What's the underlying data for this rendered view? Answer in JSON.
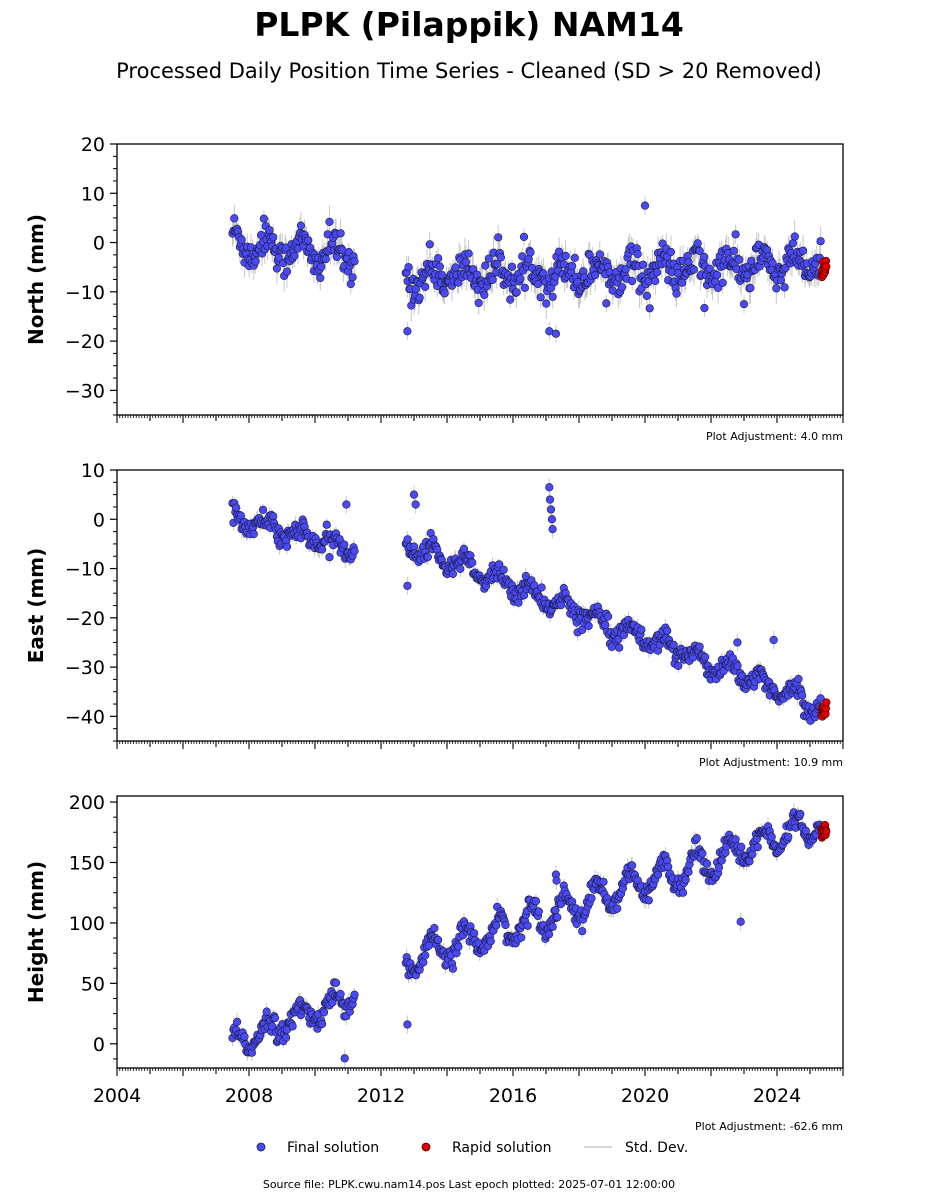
{
  "title": "PLPK (Pilappik) NAM14",
  "subtitle": "Processed Daily Position Time Series - Cleaned (SD > 20 Removed)",
  "source_text": "Source file: PLPK.cwu.nam14.pos  Last epoch plotted: 2025-07-01 12:00:00",
  "legend": {
    "final": "Final solution",
    "rapid": "Rapid solution",
    "std": "Std. Dev."
  },
  "colors": {
    "final": "#4a4af4",
    "rapid": "#e00000",
    "std": "#c8c8c8",
    "edge": "#1a1a3a"
  },
  "chart_data": [
    {
      "type": "scatter",
      "component": "north",
      "ylabel": "North (mm)",
      "ylim": [
        -35,
        20
      ],
      "yticks": [
        20,
        10,
        0,
        -10,
        -20,
        -30
      ],
      "xlim": [
        2004,
        2026
      ],
      "adjustment": "Plot Adjustment: 4.0 mm",
      "series": [
        {
          "segments": [
            {
              "x0": 2007.5,
              "x1": 2011.2,
              "y0": 0.0,
              "y1": -3.0,
              "amp": 2.5,
              "noise": 2.2
            },
            {
              "x0": 2012.75,
              "x1": 2025.35,
              "y0": -7.0,
              "y1": -4.5,
              "amp": 2.0,
              "noise": 2.3
            }
          ]
        }
      ],
      "outliers": [
        {
          "x": 2012.8,
          "y": -18
        },
        {
          "x": 2017.1,
          "y": -18
        },
        {
          "x": 2017.3,
          "y": -18.5
        },
        {
          "x": 2020.0,
          "y": 7.5
        },
        {
          "x": 2021.8,
          "y": -13.3
        },
        {
          "x": 2023.0,
          "y": -12.5
        }
      ],
      "rapid": {
        "x0": 2025.35,
        "x1": 2025.5,
        "y": -5
      }
    },
    {
      "type": "scatter",
      "component": "east",
      "ylabel": "East (mm)",
      "ylim": [
        -45,
        10
      ],
      "yticks": [
        10,
        0,
        -10,
        -20,
        -30,
        -40
      ],
      "xlim": [
        2004,
        2026
      ],
      "adjustment": "Plot Adjustment: 10.9 mm",
      "series": [
        {
          "segments": [
            {
              "x0": 2007.5,
              "x1": 2011.2,
              "y0": 0.5,
              "y1": -6.0,
              "amp": 1.5,
              "noise": 1.3
            },
            {
              "x0": 2012.75,
              "x1": 2025.35,
              "y0": -5.0,
              "y1": -38.0,
              "amp": 1.8,
              "noise": 1.2
            }
          ]
        }
      ],
      "outliers": [
        {
          "x": 2012.8,
          "y": -13.5
        },
        {
          "x": 2013.0,
          "y": 5.0
        },
        {
          "x": 2013.05,
          "y": 3.0
        },
        {
          "x": 2017.1,
          "y": 6.5
        },
        {
          "x": 2017.12,
          "y": 4.0
        },
        {
          "x": 2017.15,
          "y": 2.0
        },
        {
          "x": 2017.18,
          "y": 0.0
        },
        {
          "x": 2017.2,
          "y": -2.0
        },
        {
          "x": 2010.95,
          "y": 3.0
        },
        {
          "x": 2022.8,
          "y": -25.0
        },
        {
          "x": 2023.9,
          "y": -24.5
        }
      ],
      "rapid": {
        "x0": 2025.35,
        "x1": 2025.5,
        "y": -39
      }
    },
    {
      "type": "scatter",
      "component": "height",
      "ylabel": "Height (mm)",
      "ylim": [
        -20,
        205
      ],
      "yticks": [
        200,
        150,
        100,
        50,
        0
      ],
      "xlim": [
        2004,
        2026
      ],
      "xticks": [
        2004,
        2008,
        2012,
        2016,
        2020,
        2024
      ],
      "adjustment": "Plot Adjustment: -62.6 mm",
      "series": [
        {
          "segments": [
            {
              "x0": 2007.5,
              "x1": 2011.2,
              "y0": 0.0,
              "y1": 40.0,
              "amp": 9.0,
              "noise": 5.0
            },
            {
              "x0": 2012.75,
              "x1": 2025.35,
              "y0": 68.0,
              "y1": 182.0,
              "amp": 12.0,
              "noise": 5.0
            }
          ]
        }
      ],
      "outliers": [
        {
          "x": 2012.8,
          "y": 16
        },
        {
          "x": 2010.9,
          "y": -12
        },
        {
          "x": 2017.3,
          "y": 140
        },
        {
          "x": 2017.32,
          "y": 135
        },
        {
          "x": 2022.9,
          "y": 101
        }
      ],
      "rapid": {
        "x0": 2025.35,
        "x1": 2025.5,
        "y": 176
      }
    }
  ]
}
